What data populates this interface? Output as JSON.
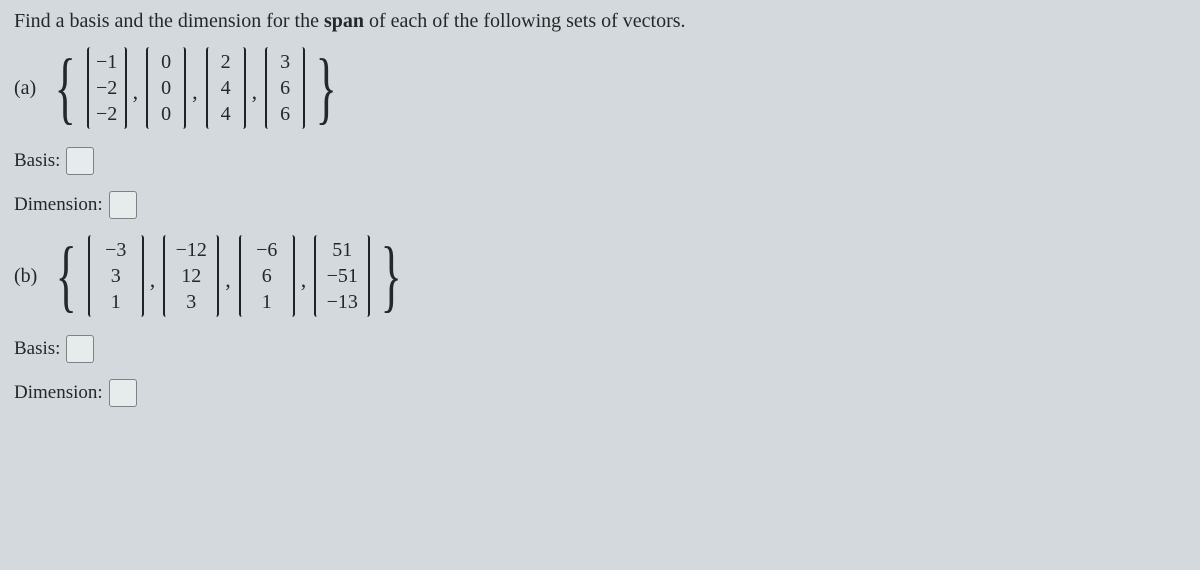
{
  "prompt": {
    "pre": "Find a basis and the dimension for the ",
    "bold": "span",
    "post": " of each of the following sets of vectors."
  },
  "parts": {
    "a": {
      "label": "(a)",
      "vecs": [
        [
          "−1",
          "−2",
          "−2"
        ],
        [
          "0",
          "0",
          "0"
        ],
        [
          "2",
          "4",
          "4"
        ],
        [
          "3",
          "6",
          "6"
        ]
      ]
    },
    "b": {
      "label": "(b)",
      "vecs": [
        [
          "−3",
          "3",
          "1"
        ],
        [
          "−12",
          "12",
          "3"
        ],
        [
          "−6",
          "6",
          "1"
        ],
        [
          "51",
          "−51",
          "−13"
        ]
      ]
    }
  },
  "labels": {
    "basis": "Basis:",
    "dimension": "Dimension:"
  }
}
